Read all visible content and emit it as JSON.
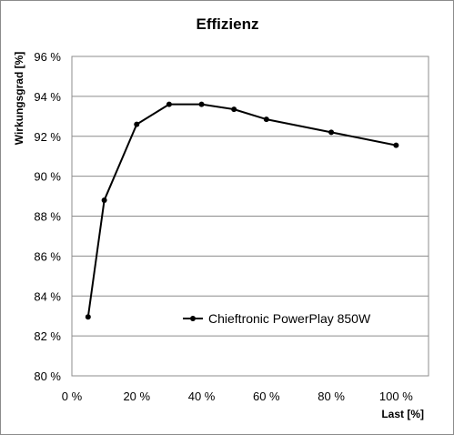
{
  "chart_data": {
    "type": "line",
    "title": "Effizienz",
    "xlabel": "Last [%]",
    "ylabel": "Wirkungsgrad [%]",
    "xlim": [
      0,
      110
    ],
    "ylim": [
      80,
      96
    ],
    "x_ticks": [
      0,
      20,
      40,
      60,
      80,
      100
    ],
    "x_tick_labels": [
      "0 %",
      "20 %",
      "40 %",
      "60 %",
      "80 %",
      "100 %"
    ],
    "y_ticks": [
      80,
      82,
      84,
      86,
      88,
      90,
      92,
      94,
      96
    ],
    "y_tick_labels": [
      "80 %",
      "82 %",
      "84 %",
      "86 %",
      "88 %",
      "90 %",
      "92 %",
      "94 %",
      "96 %"
    ],
    "grid": true,
    "legend_position": "inside-bottom-right",
    "series": [
      {
        "name": "Chieftronic PowerPlay 850W",
        "color": "#000000",
        "x": [
          5,
          10,
          20,
          30,
          40,
          50,
          60,
          80,
          100
        ],
        "y": [
          82.95,
          88.8,
          92.6,
          93.6,
          93.6,
          93.35,
          92.85,
          92.2,
          91.55
        ]
      }
    ]
  }
}
